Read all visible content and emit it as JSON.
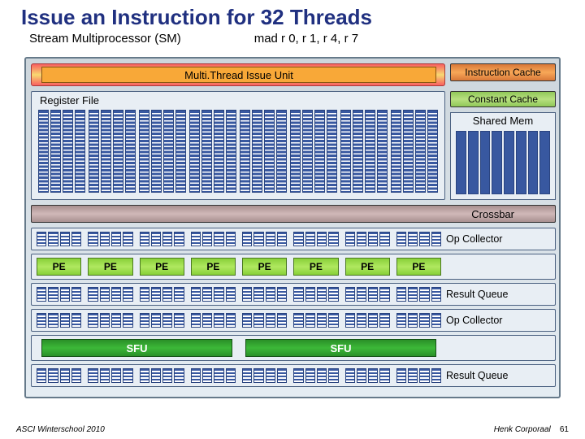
{
  "title": "Issue an Instruction for 32 Threads",
  "sm_label": "Stream Multiprocessor (SM)",
  "instruction": "mad r 0, r 1, r 4, r 7",
  "mt_issue": "Multi.Thread Issue Unit",
  "icache": "Instruction Cache",
  "ccache": "Constant Cache",
  "regfile": "Register File",
  "shared_mem": "Shared Mem",
  "crossbar": "Crossbar",
  "op_collector": "Op Collector",
  "result_queue": "Result Queue",
  "pe": "PE",
  "sfu": "SFU",
  "footer_left": "ASCI Winterschool 2010",
  "footer_right": "Henk Corporaal",
  "page_num": "61",
  "layout": {
    "regfile_groups": 8,
    "regfile_cols_per_group": 4,
    "smem_cols": 8,
    "cell_groups": 8,
    "cells_per_group": 4,
    "pe_count": 8,
    "sfu_count": 2,
    "row_y": {
      "opc1": 208,
      "pe": 240,
      "res1": 276,
      "opc2": 308,
      "sfu": 340,
      "res2": 376
    },
    "row_h": {
      "thin": 28,
      "pe": 32,
      "sfu": 32
    }
  },
  "colors": {
    "title": "#203080",
    "frame_border": "#667a8a",
    "frame_bg_top": "#cdd6dc",
    "frame_bg_bot": "#e4ecf2",
    "box_border": "#4a6080",
    "box_bg": "#e8eef4",
    "reg_blue": "#3858a0",
    "reg_blue_border": "#2a4480",
    "pe_grad_a": "#88d038",
    "pe_grad_b": "#b0e860",
    "sfu_grad_a": "#2a9028",
    "sfu_grad_b": "#3cb838",
    "icache_a": "#d87838",
    "icache_b": "#f8a858",
    "ccache_a": "#90c858",
    "ccache_b": "#b8e080",
    "mtwrap_a": "#f86060",
    "mtwrap_b": "#f8d870",
    "mt_inner": "#f8a838",
    "xbar_a": "#a89090",
    "xbar_b": "#d0b8b8"
  }
}
